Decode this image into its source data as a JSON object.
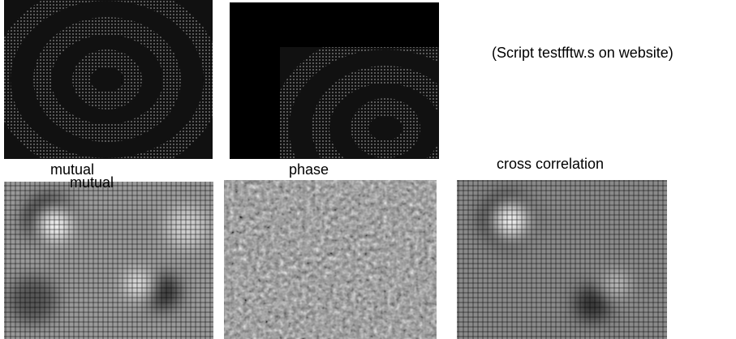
{
  "header": {
    "note": "(Script testfftw.s on website)"
  },
  "labels": [
    "mutual",
    "mutual",
    "phase",
    "cross correlation"
  ]
}
